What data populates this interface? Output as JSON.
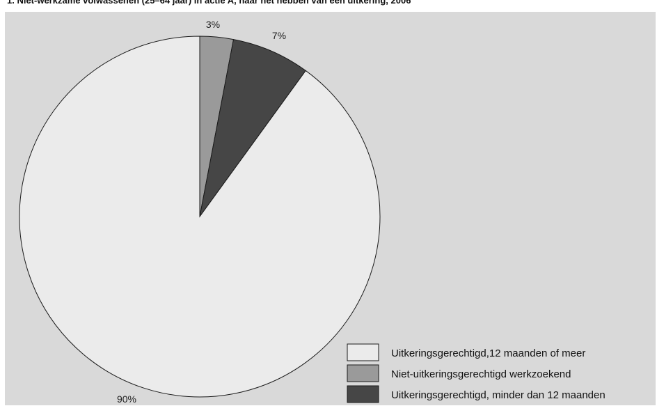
{
  "chart_data": {
    "type": "pie",
    "title": "1. Niet-werkzame volwassenen (25–64 jaar) in actie A, naar het hebben van een uitkering, 2006",
    "start": "top",
    "direction": "clockwise",
    "legend_position": "bottom-right",
    "slices": [
      {
        "label": "Niet-uitkeringsgerechtigd werkzoekend",
        "value": 3,
        "value_label": "3%",
        "color": "#9a9a9a"
      },
      {
        "label": "Uitkeringsgerechtigd, minder dan 12 maanden",
        "value": 7,
        "value_label": "7%",
        "color": "#464646"
      },
      {
        "label": "Uitkeringsgerechtigd,12 maanden of meer",
        "value": 90,
        "value_label": "90%",
        "color": "#ebebeb"
      }
    ],
    "legend": [
      {
        "label": "Uitkeringsgerechtigd,12 maanden of meer",
        "color": "#ebebeb"
      },
      {
        "label": "Niet-uitkeringsgerechtigd werkzoekend",
        "color": "#9a9a9a"
      },
      {
        "label": "Uitkeringsgerechtigd, minder dan 12 maanden",
        "color": "#464646"
      }
    ]
  }
}
